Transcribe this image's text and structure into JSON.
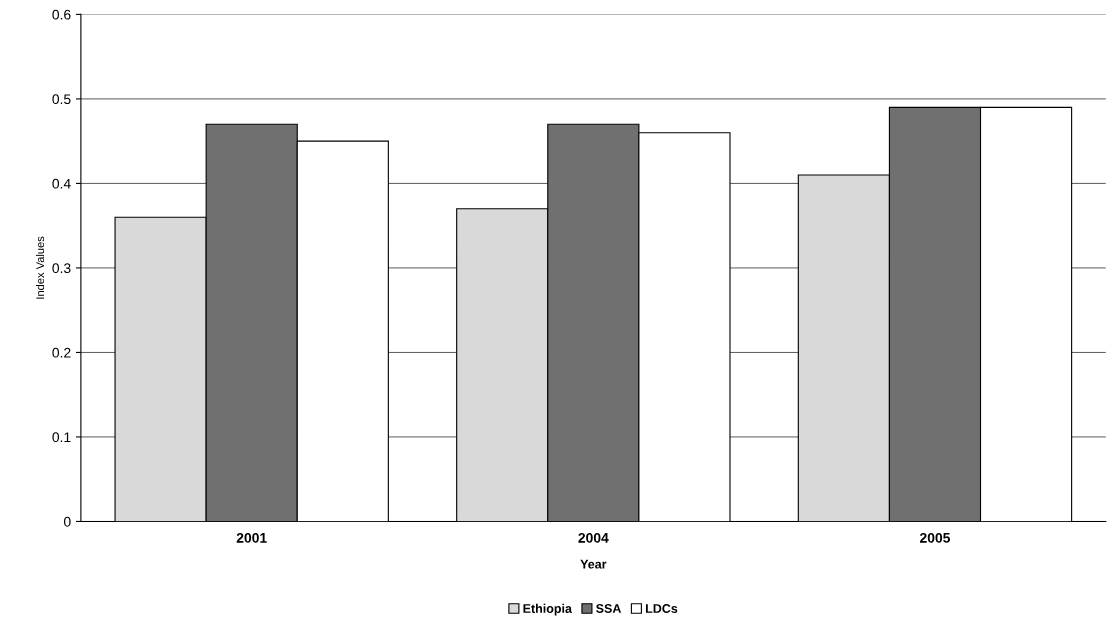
{
  "chart_data": {
    "type": "bar",
    "xlabel": "Year",
    "ylabel": "Index Values",
    "categories": [
      "2001",
      "2004",
      "2005"
    ],
    "series": [
      {
        "name": "Ethiopia",
        "color": "#d9d9d9",
        "values": [
          0.36,
          0.37,
          0.41
        ]
      },
      {
        "name": "SSA",
        "color": "#707070",
        "values": [
          0.47,
          0.47,
          0.49
        ]
      },
      {
        "name": "LDCs",
        "color": "#ffffff",
        "values": [
          0.45,
          0.46,
          0.49
        ]
      }
    ],
    "ylim": [
      0,
      0.6
    ],
    "yticks": [
      0,
      0.1,
      0.2,
      0.3,
      0.4,
      0.5,
      0.6
    ],
    "grid": "y",
    "legend": "bottom"
  }
}
